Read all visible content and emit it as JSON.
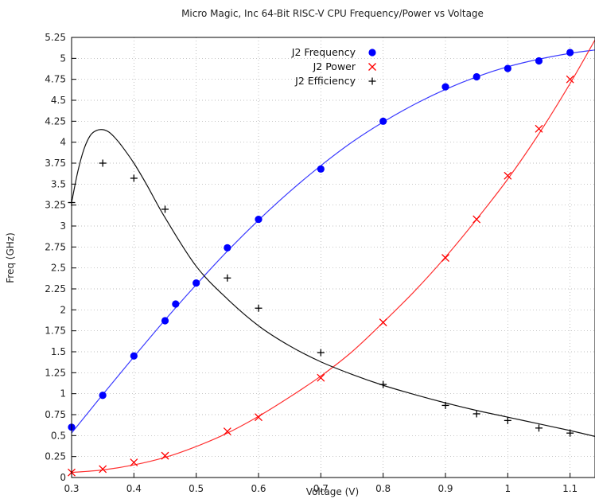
{
  "chart_data": {
    "type": "scatter",
    "title": "Micro Magic, Inc 64-Bit RISC-V CPU Frequency/Power vs Voltage",
    "xlabel": "Voltage (V)",
    "ylabel": "Freq (GHz)",
    "xlim": [
      0.3,
      1.14
    ],
    "ylim": [
      0,
      5.25
    ],
    "x_ticks": [
      0.3,
      0.4,
      0.5,
      0.6,
      0.7,
      0.8,
      0.9,
      1,
      1.1
    ],
    "x_tick_labels": [
      "0.3",
      "0.4",
      "0.5",
      "0.6",
      "0.7",
      "0.8",
      "0.9",
      "1",
      "1.1"
    ],
    "y_ticks": [
      0,
      0.25,
      0.5,
      0.75,
      1,
      1.25,
      1.5,
      1.75,
      2,
      2.25,
      2.5,
      2.75,
      3,
      3.25,
      3.5,
      3.75,
      4,
      4.25,
      4.5,
      4.75,
      5,
      5.25
    ],
    "y_tick_labels": [
      "0",
      "0.25",
      "0.5",
      "0.75",
      "1",
      "1.25",
      "1.5",
      "1.75",
      "2",
      "2.25",
      "2.5",
      "2.75",
      "3",
      "3.25",
      "3.5",
      "3.75",
      "4",
      "4.25",
      "4.5",
      "4.75",
      "5",
      "5.25"
    ],
    "grid": true,
    "legend_position": "top-center",
    "series": [
      {
        "name": "J2 Frequency",
        "marker": "dot",
        "color": "#0000ff",
        "fit_color": "#3a3aff",
        "x": [
          0.3,
          0.35,
          0.4,
          0.45,
          0.467,
          0.5,
          0.55,
          0.6,
          0.7,
          0.8,
          0.9,
          0.95,
          1.0,
          1.05,
          1.1
        ],
        "y": [
          0.6,
          0.98,
          1.45,
          1.87,
          2.07,
          2.32,
          2.74,
          3.08,
          3.68,
          4.25,
          4.66,
          4.78,
          4.88,
          4.97,
          5.07
        ],
        "fit_x": [
          0.3,
          0.35,
          0.4,
          0.45,
          0.5,
          0.55,
          0.6,
          0.65,
          0.7,
          0.75,
          0.8,
          0.85,
          0.9,
          0.95,
          1.0,
          1.05,
          1.1,
          1.14
        ],
        "fit_y": [
          0.53,
          0.99,
          1.44,
          1.88,
          2.3,
          2.7,
          3.07,
          3.41,
          3.72,
          4.0,
          4.24,
          4.45,
          4.63,
          4.78,
          4.9,
          4.99,
          5.06,
          5.1
        ]
      },
      {
        "name": "J2 Power",
        "marker": "x",
        "color": "#ff0000",
        "fit_color": "#ff3030",
        "x": [
          0.3,
          0.35,
          0.4,
          0.45,
          0.55,
          0.6,
          0.7,
          0.8,
          0.9,
          0.95,
          1.0,
          1.05,
          1.1
        ],
        "y": [
          0.06,
          0.1,
          0.18,
          0.26,
          0.55,
          0.72,
          1.19,
          1.85,
          2.62,
          3.08,
          3.6,
          4.16,
          4.75
        ],
        "fit_x": [
          0.3,
          0.35,
          0.4,
          0.45,
          0.5,
          0.55,
          0.6,
          0.65,
          0.7,
          0.75,
          0.8,
          0.85,
          0.9,
          0.95,
          1.0,
          1.05,
          1.1,
          1.14
        ],
        "fit_y": [
          0.06,
          0.09,
          0.15,
          0.24,
          0.37,
          0.53,
          0.73,
          0.96,
          1.21,
          1.5,
          1.85,
          2.22,
          2.63,
          3.08,
          3.56,
          4.1,
          4.7,
          5.22
        ]
      },
      {
        "name": "J2 Efficiency",
        "marker": "plus",
        "color": "#000000",
        "fit_color": "#111111",
        "x": [
          0.3,
          0.35,
          0.4,
          0.45,
          0.55,
          0.6,
          0.7,
          0.8,
          0.9,
          0.95,
          1.0,
          1.05,
          1.1
        ],
        "y": [
          3.28,
          3.75,
          3.57,
          3.2,
          2.38,
          2.02,
          1.49,
          1.11,
          0.86,
          0.76,
          0.68,
          0.59,
          0.53
        ],
        "fit_x": [
          0.3,
          0.31,
          0.32,
          0.33,
          0.34,
          0.35,
          0.36,
          0.37,
          0.38,
          0.4,
          0.42,
          0.45,
          0.5,
          0.55,
          0.6,
          0.65,
          0.7,
          0.75,
          0.8,
          0.85,
          0.9,
          0.95,
          1.0,
          1.05,
          1.1,
          1.14
        ],
        "fit_y": [
          3.28,
          3.65,
          3.92,
          4.08,
          4.14,
          4.15,
          4.12,
          4.05,
          3.96,
          3.75,
          3.5,
          3.1,
          2.52,
          2.13,
          1.81,
          1.57,
          1.38,
          1.23,
          1.1,
          0.99,
          0.89,
          0.8,
          0.72,
          0.64,
          0.56,
          0.49
        ]
      }
    ]
  }
}
